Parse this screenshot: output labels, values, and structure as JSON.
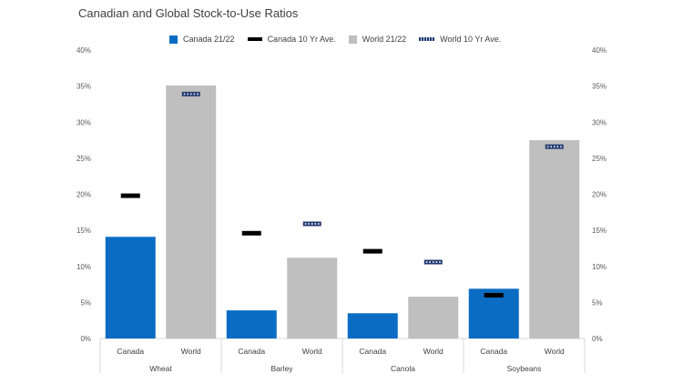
{
  "chart_data": {
    "type": "bar",
    "title": "Canadian and Global Stock-to-Use Ratios",
    "groups": [
      "Wheat",
      "Barley",
      "Canola",
      "Soybeans"
    ],
    "subcategories": [
      "Canada",
      "World"
    ],
    "y_ticks": [
      "40%",
      "35%",
      "30%",
      "25%",
      "20%",
      "15%",
      "10%",
      "5%",
      "0%"
    ],
    "ylim": [
      0,
      40
    ],
    "legend_position": "top",
    "colors": {
      "canada": "#0b6cc4",
      "world": "#bfbfbf",
      "canada_avg": "#000000",
      "world_avg": "#233a6b"
    },
    "series": [
      {
        "name": "Canada 21/22",
        "kind": "bar",
        "values": [
          14.1,
          3.9,
          3.5,
          6.9
        ]
      },
      {
        "name": "Canada 10 Yr Ave.",
        "kind": "marker",
        "values": [
          19.8,
          14.6,
          12.1,
          6.0
        ]
      },
      {
        "name": "World 21/22",
        "kind": "bar",
        "values": [
          35.1,
          11.2,
          5.8,
          27.5
        ]
      },
      {
        "name": "World 10 Yr Ave.",
        "kind": "marker",
        "values": [
          33.9,
          15.9,
          10.6,
          26.6
        ]
      }
    ]
  }
}
